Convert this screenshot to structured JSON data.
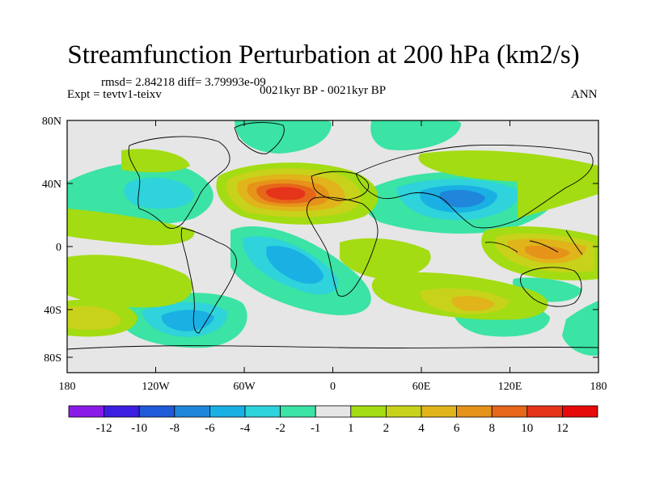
{
  "title": "Streamfunction Perturbation at 200 hPa (km2/s)",
  "stats": "rmsd= 2.84218  diff= 3.79993e-09",
  "experiment": "Expt = tevtv1-teixv",
  "period": "0021kyr BP - 0021kyr BP",
  "season": "ANN",
  "lat_ticks": [
    "80N",
    "40N",
    "0",
    "40S",
    "80S"
  ],
  "lon_ticks": [
    "180",
    "120W",
    "60W",
    "0",
    "60E",
    "120E",
    "180"
  ],
  "colorbar": {
    "labels": [
      "-12",
      "-10",
      "-8",
      "-6",
      "-4",
      "-2",
      "-1",
      "1",
      "2",
      "4",
      "6",
      "8",
      "10",
      "12"
    ],
    "colors": [
      "#8a1ae6",
      "#3c1ee0",
      "#1f5ad8",
      "#1f86db",
      "#1ab0e4",
      "#2ed3db",
      "#3be3a4",
      "#e6e6e6",
      "#a3dc12",
      "#c8d21a",
      "#e0b41a",
      "#e6931a",
      "#e6661a",
      "#e6341a",
      "#e60a0a"
    ]
  }
}
